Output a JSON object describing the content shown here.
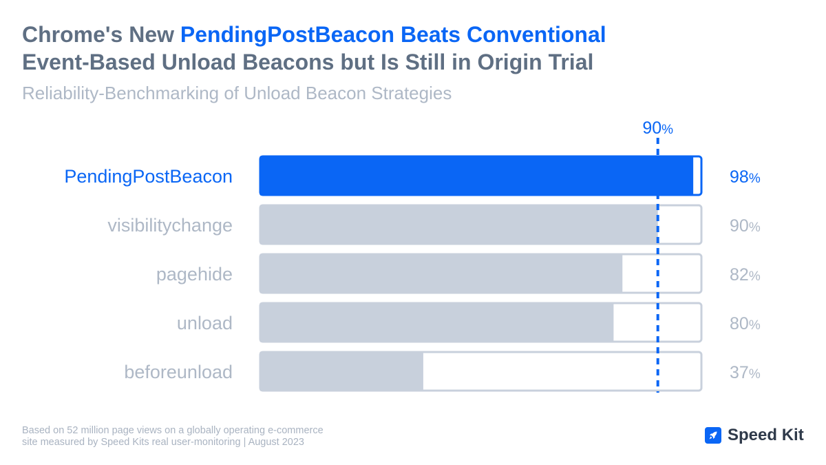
{
  "title": {
    "line1_prefix": "Chrome's New ",
    "line1_highlight": "PendingPostBeacon Beats Conventional",
    "line2": "Event-Based Unload Beacons but Is Still in Origin Trial"
  },
  "subtitle": "Reliability-Benchmarking of Unload Beacon Strategies",
  "footnote": {
    "line1": "Based on 52 million page views on a globally operating e-commerce",
    "line2": "site measured by Speed Kits real user-monitoring | August 2023"
  },
  "logo": {
    "text": "Speed Kit",
    "icon": "rocket-icon"
  },
  "colors": {
    "highlight": "#0a66f5",
    "bar_gray": "#c8d0dc",
    "track_border": "#c8d0dc",
    "label_gray": "#aeb8c6",
    "title_gray": "#5f6f83"
  },
  "chart_data": {
    "type": "bar",
    "orientation": "horizontal",
    "categories": [
      "PendingPostBeacon",
      "visibilitychange",
      "pagehide",
      "unload",
      "beforeunload"
    ],
    "values": [
      98,
      90,
      82,
      80,
      37
    ],
    "value_suffix": "%",
    "highlight_index": 0,
    "xlim": [
      0,
      100
    ],
    "reference_line": {
      "value": 90,
      "label": "90",
      "label_suffix": "%",
      "style": "dashed"
    }
  }
}
